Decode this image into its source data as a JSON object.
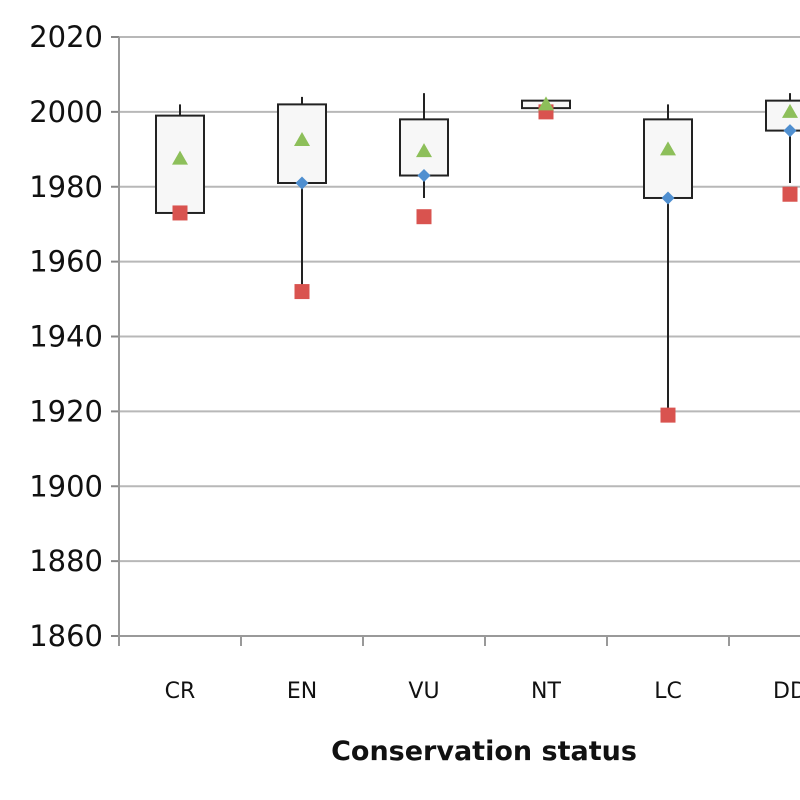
{
  "chart_data": {
    "type": "box",
    "xlabel": "Conservation status",
    "ylabel": "",
    "ylim": [
      1860,
      2020
    ],
    "yticks": [
      1860,
      1880,
      1900,
      1920,
      1940,
      1960,
      1980,
      2000,
      2020
    ],
    "grid": true,
    "categories": [
      "CR",
      "EN",
      "VU",
      "NT",
      "LC",
      "DD"
    ],
    "colors": {
      "min_marker": "#d9534f",
      "median_marker": "#4f8fd0",
      "mean_marker": "#8dbf5a",
      "grid": "#b8b8b8",
      "box_fill": "#f7f7f7",
      "box_stroke": "#222222"
    },
    "boxes": [
      {
        "category": "CR",
        "whisker_high": 2002,
        "q3": 1999,
        "q1": 1973,
        "median": null,
        "mean": 1987.5,
        "min_point": 1973
      },
      {
        "category": "EN",
        "whisker_high": 2004,
        "q3": 2002,
        "q1": 1981,
        "median": 1981,
        "mean": 1992.5,
        "min_point": 1952,
        "whisker_low": 1952
      },
      {
        "category": "VU",
        "whisker_high": 2005,
        "q3": 1998,
        "q1": 1983,
        "median": 1983,
        "mean": 1989.5,
        "min_point": 1972,
        "whisker_low": 1977
      },
      {
        "category": "NT",
        "whisker_high": 2003,
        "q3": 2003,
        "q1": 2001,
        "median": null,
        "mean": 2002,
        "min_point": 2000
      },
      {
        "category": "LC",
        "whisker_high": 2002,
        "q3": 1998,
        "q1": 1977,
        "median": 1977,
        "mean": 1990,
        "min_point": 1919,
        "whisker_low": 1919
      },
      {
        "category": "DD",
        "whisker_high": 2005,
        "q3": 2003,
        "q1": 1995,
        "median": 1995,
        "mean": 2000,
        "min_point": 1978,
        "whisker_low": 1981
      }
    ]
  }
}
